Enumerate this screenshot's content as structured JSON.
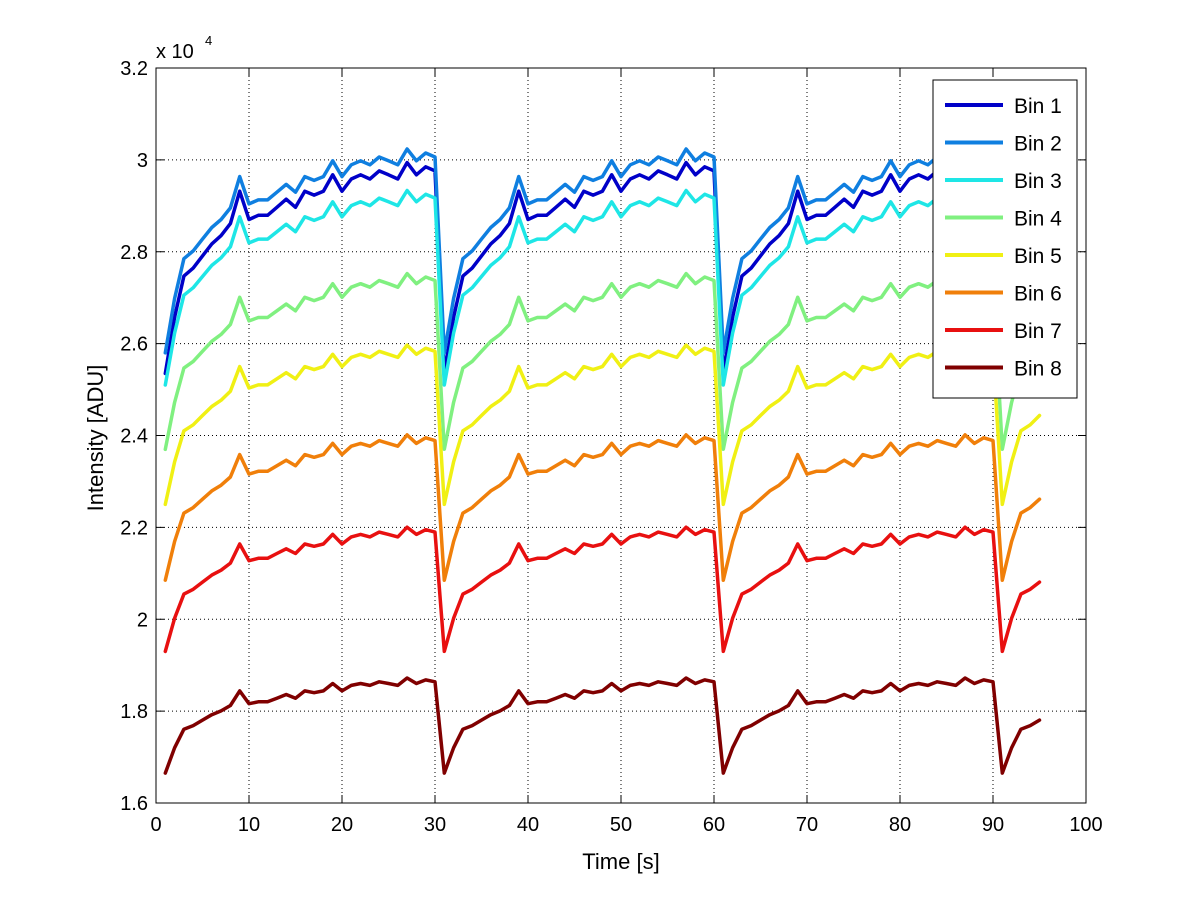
{
  "chart_data": {
    "type": "line",
    "title": "",
    "xlabel": "Time [s]",
    "ylabel": "Intensity [ADU]",
    "xlim": [
      0,
      100
    ],
    "ylim": [
      1.6,
      3.2
    ],
    "y_multiplier": {
      "base": "x 10",
      "exponent": "4"
    },
    "grid": true,
    "legend_position": "top-right",
    "x_ticks": [
      0,
      10,
      20,
      30,
      40,
      50,
      60,
      70,
      80,
      90,
      100
    ],
    "x_tick_labels": [
      "0",
      "10",
      "20",
      "30",
      "40",
      "50",
      "60",
      "70",
      "80",
      "90",
      "100"
    ],
    "y_ticks": [
      1.6,
      1.8,
      2.0,
      2.2,
      2.4,
      2.6,
      2.8,
      3.0,
      3.2
    ],
    "y_tick_labels": [
      "1.6",
      "1.8",
      "2",
      "2.2",
      "2.4",
      "2.6",
      "2.8",
      "3",
      "3.2"
    ],
    "cycle_profile": [
      0.0,
      0.272,
      0.471,
      0.51,
      0.569,
      0.627,
      0.667,
      0.725,
      0.882,
      0.745,
      0.765,
      0.765,
      0.804,
      0.843,
      0.804,
      0.882,
      0.863,
      0.882,
      0.961,
      0.882,
      0.941,
      0.961,
      0.941,
      0.98,
      0.961,
      0.941,
      1.02,
      0.961,
      1.0,
      0.98
    ],
    "cycle_length": 30,
    "num_points": 95,
    "series": [
      {
        "name": "Bin 1",
        "color": "#0000c8",
        "start": 2.535,
        "end": 2.985
      },
      {
        "name": "Bin 2",
        "color": "#0f7fe0",
        "start": 2.58,
        "end": 3.015
      },
      {
        "name": "Bin 3",
        "color": "#1ee6e6",
        "start": 2.51,
        "end": 2.925
      },
      {
        "name": "Bin 4",
        "color": "#80f080",
        "start": 2.37,
        "end": 2.745
      },
      {
        "name": "Bin 5",
        "color": "#f0f014",
        "start": 2.25,
        "end": 2.59
      },
      {
        "name": "Bin 6",
        "color": "#f07f0a",
        "start": 2.085,
        "end": 2.395
      },
      {
        "name": "Bin 7",
        "color": "#e81010",
        "start": 1.93,
        "end": 2.195
      },
      {
        "name": "Bin 8",
        "color": "#800000",
        "start": 1.665,
        "end": 1.868
      }
    ]
  }
}
